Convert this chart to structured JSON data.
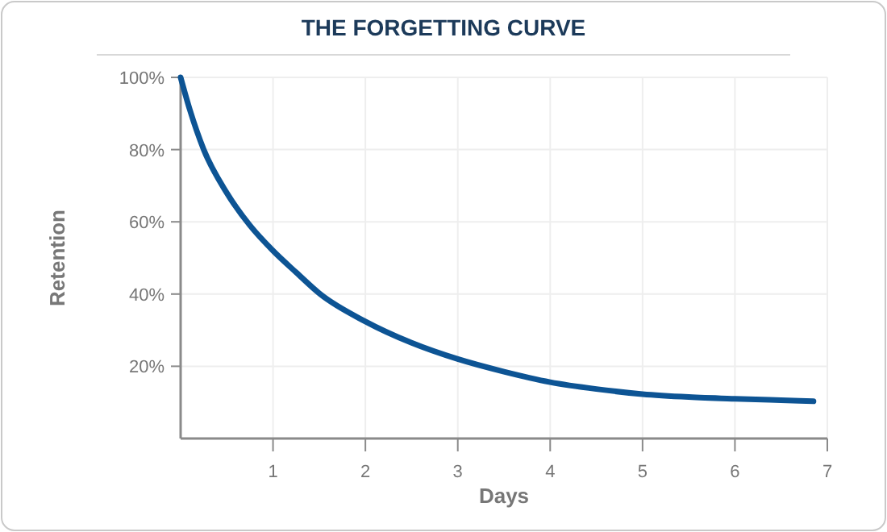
{
  "chart_data": {
    "type": "line",
    "title": "THE FORGETTING CURVE",
    "xlabel": "Days",
    "ylabel": "Retention",
    "x": [
      0,
      0.1,
      0.25,
      0.5,
      0.75,
      1,
      1.25,
      1.51,
      2,
      2.5,
      3,
      3.5,
      4,
      4.5,
      5,
      5.5,
      6,
      6.5,
      6.85
    ],
    "series": [
      {
        "color": "#0d5494",
        "values": [
          100,
          91,
          80,
          68,
          59,
          52,
          46,
          40,
          32.4,
          26.5,
          22,
          18.5,
          15.6,
          13.7,
          12.3,
          11.5,
          11,
          10.6,
          10.3
        ]
      }
    ],
    "xlim": [
      0,
      7
    ],
    "xticks": [
      1,
      2,
      3,
      4,
      5,
      6,
      7
    ],
    "ylim": [
      0,
      100
    ],
    "yticks": [
      {
        "value": 20,
        "label": "20%"
      },
      {
        "value": 40,
        "label": "40%"
      },
      {
        "value": 60,
        "label": "60%"
      },
      {
        "value": 80,
        "label": "80%"
      },
      {
        "value": 100,
        "label": "100%"
      }
    ],
    "grid": true,
    "line_style": "solid",
    "marker": "none"
  }
}
